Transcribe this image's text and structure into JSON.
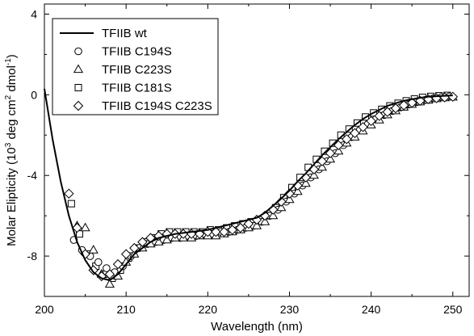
{
  "chart_data": {
    "type": "scatter",
    "xlabel": "Wavelength (nm)",
    "ylabel": "Molar Elipticity (10³ deg cm² dmol⁻¹)",
    "ylabel_parts": {
      "prefix": "Molar Elipticity (10",
      "exp1": "3",
      "mid1": " deg cm",
      "exp2": "2",
      "mid2": " dmol",
      "exp3": "-1",
      "suffix": ")"
    },
    "xlim": [
      200,
      252
    ],
    "ylim": [
      -10,
      4.5
    ],
    "x_ticks": [
      200,
      210,
      220,
      230,
      240,
      250
    ],
    "x_tick_labels": [
      "200",
      "210",
      "220",
      "230",
      "240",
      "250"
    ],
    "y_ticks": [
      4,
      0,
      -4,
      -8
    ],
    "y_tick_labels": [
      "4",
      "0",
      "-4",
      "-8"
    ],
    "grid": false,
    "legend_position": "top-left",
    "series": [
      {
        "name": "TFIIB wt",
        "marker": "line",
        "x": [
          200,
          201,
          202,
          203,
          204,
          205,
          206,
          207,
          208,
          209,
          210,
          211,
          212,
          213,
          214,
          215,
          216,
          218,
          220,
          222,
          224,
          226,
          227,
          228,
          229,
          230,
          231,
          232,
          233,
          234,
          235,
          236,
          237,
          238,
          239,
          240,
          241,
          242,
          243,
          244,
          245,
          246,
          247,
          248,
          249,
          250
        ],
        "y": [
          0.3,
          -2.2,
          -4.3,
          -6.0,
          -7.3,
          -8.2,
          -8.8,
          -9.1,
          -9.2,
          -8.9,
          -8.4,
          -7.9,
          -7.6,
          -7.3,
          -7.1,
          -7.0,
          -6.9,
          -6.8,
          -6.7,
          -6.5,
          -6.3,
          -6.1,
          -5.85,
          -5.5,
          -5.15,
          -4.75,
          -4.3,
          -3.9,
          -3.45,
          -3.0,
          -2.6,
          -2.2,
          -1.85,
          -1.5,
          -1.2,
          -0.95,
          -0.75,
          -0.55,
          -0.42,
          -0.3,
          -0.22,
          -0.15,
          -0.1,
          -0.07,
          -0.05,
          -0.03
        ]
      },
      {
        "name": "TFIIB C194S",
        "marker": "circle",
        "x": [
          203.6,
          204.6,
          205.6,
          206.6,
          207.6,
          208.6,
          209.6,
          210.6,
          211.6,
          212.6,
          213.6,
          214.6,
          215.6,
          216.6,
          217.6,
          218.6,
          219.6,
          220.6,
          221.6,
          222.6,
          223.6,
          224.6,
          225.6,
          226.6,
          227.6,
          228.6,
          229.6,
          230.6,
          231.6,
          232.6,
          233.6,
          234.6,
          235.6,
          236.6,
          237.6,
          238.6,
          239.6,
          240.6,
          241.6,
          242.6,
          243.6,
          244.6,
          245.6,
          246.6,
          247.6,
          248.6,
          249.6
        ],
        "y": [
          -7.2,
          -7.7,
          -8.0,
          -8.3,
          -8.6,
          -8.8,
          -8.5,
          -8.0,
          -7.6,
          -7.4,
          -7.3,
          -7.2,
          -7.1,
          -7.1,
          -7.0,
          -7.0,
          -6.9,
          -6.9,
          -6.8,
          -6.8,
          -6.7,
          -6.6,
          -6.5,
          -6.3,
          -6.0,
          -5.7,
          -5.3,
          -4.9,
          -4.5,
          -4.1,
          -3.7,
          -3.3,
          -2.9,
          -2.5,
          -2.1,
          -1.75,
          -1.45,
          -1.2,
          -1.0,
          -0.8,
          -0.62,
          -0.48,
          -0.36,
          -0.26,
          -0.18,
          -0.12,
          -0.08
        ]
      },
      {
        "name": "TFIIB C223S",
        "marker": "triangle",
        "x": [
          204.0,
          205.0,
          206.0,
          207.0,
          208.0,
          209.0,
          210.0,
          211.0,
          212.0,
          213.0,
          214.0,
          215.0,
          216.0,
          217.0,
          218.0,
          219.0,
          220.0,
          221.0,
          222.0,
          223.0,
          224.0,
          225.0,
          226.0,
          227.0,
          228.0,
          229.0,
          230.0,
          231.0,
          232.0,
          233.0,
          234.0,
          235.0,
          236.0,
          237.0,
          238.0,
          239.0,
          240.0,
          241.0,
          242.0,
          243.0,
          244.0,
          245.0,
          246.0,
          247.0,
          248.0,
          249.0,
          250.0
        ],
        "y": [
          -6.5,
          -6.6,
          -7.7,
          -8.9,
          -9.4,
          -9.0,
          -8.3,
          -7.9,
          -7.6,
          -7.4,
          -7.3,
          -7.2,
          -7.1,
          -7.1,
          -7.1,
          -7.0,
          -7.0,
          -7.0,
          -6.9,
          -6.8,
          -6.7,
          -6.6,
          -6.5,
          -6.3,
          -6.0,
          -5.6,
          -5.2,
          -4.8,
          -4.4,
          -4.0,
          -3.6,
          -3.2,
          -2.8,
          -2.4,
          -2.1,
          -1.8,
          -1.5,
          -1.25,
          -1.0,
          -0.8,
          -0.62,
          -0.48,
          -0.36,
          -0.27,
          -0.2,
          -0.15,
          -0.12
        ]
      },
      {
        "name": "TFIIB C181S",
        "marker": "square",
        "x": [
          203.3,
          204.3,
          205.3,
          206.3,
          207.3,
          208.3,
          209.3,
          210.3,
          211.3,
          212.3,
          213.3,
          214.3,
          215.3,
          216.3,
          217.3,
          218.3,
          219.3,
          220.3,
          221.3,
          222.3,
          223.3,
          224.3,
          225.3,
          226.3,
          227.3,
          228.3,
          229.3,
          230.3,
          231.3,
          232.3,
          233.3,
          234.3,
          235.3,
          236.3,
          237.3,
          238.3,
          239.3,
          240.3,
          241.3,
          242.3,
          243.3,
          244.3,
          245.3,
          246.3,
          247.3,
          248.3,
          249.3
        ],
        "y": [
          -5.4,
          -6.9,
          -7.9,
          -8.5,
          -8.9,
          -9.1,
          -8.7,
          -8.1,
          -7.6,
          -7.3,
          -7.1,
          -6.9,
          -6.8,
          -6.8,
          -6.8,
          -6.8,
          -6.8,
          -6.7,
          -6.7,
          -6.6,
          -6.5,
          -6.4,
          -6.3,
          -6.2,
          -6.0,
          -5.6,
          -5.1,
          -4.6,
          -4.1,
          -3.6,
          -3.2,
          -2.8,
          -2.4,
          -2.0,
          -1.7,
          -1.4,
          -1.1,
          -0.9,
          -0.72,
          -0.55,
          -0.42,
          -0.3,
          -0.21,
          -0.13,
          -0.08,
          -0.05,
          -0.03
        ]
      },
      {
        "name": "TFIIB C194S C223S",
        "marker": "diamond",
        "x": [
          203.0,
          204.0,
          205.0,
          206.0,
          207.0,
          208.0,
          209.0,
          210.0,
          211.0,
          212.0,
          213.0,
          214.0,
          215.0,
          216.0,
          217.0,
          218.0,
          219.0,
          220.0,
          221.0,
          222.0,
          223.0,
          224.0,
          225.0,
          226.0,
          227.0,
          228.0,
          229.0,
          230.0,
          231.0,
          232.0,
          233.0,
          234.0,
          235.0,
          236.0,
          237.0,
          238.0,
          239.0,
          240.0,
          241.0,
          242.0,
          243.0,
          244.0,
          245.0,
          246.0,
          247.0,
          248.0,
          249.0,
          250.0
        ],
        "y": [
          -4.9,
          -6.6,
          -7.9,
          -8.7,
          -9.0,
          -8.9,
          -8.4,
          -7.9,
          -7.6,
          -7.3,
          -7.1,
          -7.0,
          -6.9,
          -6.9,
          -6.9,
          -6.9,
          -6.9,
          -6.8,
          -6.8,
          -6.8,
          -6.7,
          -6.6,
          -6.4,
          -6.2,
          -6.0,
          -5.7,
          -5.3,
          -4.9,
          -4.5,
          -4.1,
          -3.7,
          -3.3,
          -2.9,
          -2.5,
          -2.2,
          -1.9,
          -1.6,
          -1.3,
          -1.05,
          -0.85,
          -0.67,
          -0.52,
          -0.4,
          -0.3,
          -0.22,
          -0.17,
          -0.13,
          -0.1
        ]
      }
    ]
  }
}
